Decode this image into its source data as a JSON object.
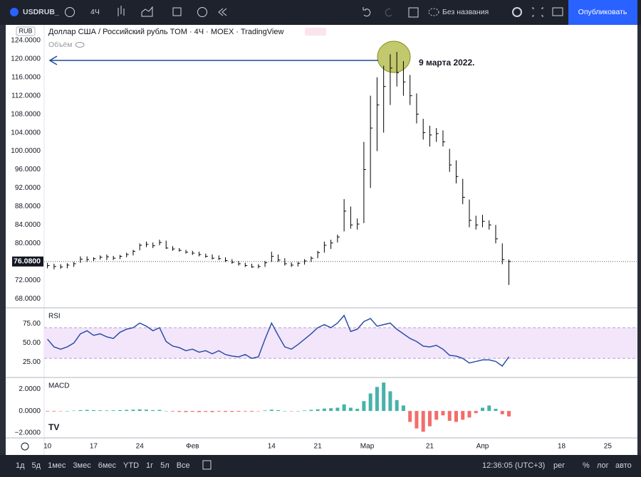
{
  "toolbar": {
    "symbol": "USDRUB_",
    "interval": "4Ч",
    "layout_name": "Без названия",
    "publish": "Опубликовать"
  },
  "legend": {
    "title": "Доллар США / Российский рубль TOM · 4Ч · MOEX · TradingView",
    "volume": "Объём",
    "currency": "RUB"
  },
  "annotation": "9 марта 2022.",
  "chart_data": [
    {
      "type": "ohlc",
      "color": "#000000",
      "x": [
        0,
        1,
        2,
        3,
        4,
        5,
        6,
        7,
        8,
        9,
        10,
        11,
        12,
        13,
        14,
        15,
        16,
        17,
        18,
        19,
        20,
        21,
        22,
        23,
        24,
        25,
        26,
        27,
        28,
        29,
        30,
        31,
        32,
        33,
        34,
        35,
        36,
        37,
        38,
        39,
        40,
        41,
        42,
        43,
        44,
        45,
        46,
        47,
        48,
        49,
        50,
        51,
        52,
        53,
        54,
        55,
        56,
        57,
        58,
        59,
        60,
        61,
        62,
        63,
        64,
        65,
        66,
        67,
        68,
        69,
        70
      ],
      "high": [
        75.8,
        75.6,
        75.5,
        75.7,
        76.0,
        77.2,
        77.2,
        77.0,
        77.4,
        77.6,
        77.3,
        77.5,
        78.0,
        78.6,
        80.0,
        80.4,
        80.2,
        80.8,
        80.6,
        79.4,
        79.0,
        78.6,
        78.4,
        78.2,
        77.8,
        77.6,
        77.4,
        77.0,
        76.6,
        76.2,
        75.8,
        75.6,
        75.5,
        76.2,
        78.2,
        77.6,
        76.8,
        75.9,
        76.0,
        76.6,
        77.2,
        78.4,
        80.4,
        80.8,
        81.9,
        89.6,
        88.0,
        85.4,
        102.0,
        112.0,
        116.0,
        118.5,
        121.0,
        121.5,
        119.5,
        116.5,
        112.5,
        107.0,
        105.5,
        105.0,
        104.5,
        100.5,
        98.0,
        94.0,
        89.5,
        86.0,
        86.2,
        85.0,
        84.0,
        80.0,
        76.5
      ],
      "low": [
        74.6,
        74.4,
        74.5,
        74.6,
        74.9,
        75.8,
        76.0,
        76.2,
        76.5,
        76.4,
        76.4,
        76.6,
        77.0,
        77.4,
        78.5,
        79.2,
        79.0,
        79.6,
        78.8,
        78.4,
        78.2,
        77.8,
        77.5,
        77.2,
        76.9,
        76.5,
        76.4,
        76.0,
        75.6,
        75.2,
        74.9,
        74.7,
        74.6,
        74.9,
        76.0,
        76.0,
        75.2,
        74.9,
        75.0,
        75.4,
        76.0,
        76.8,
        78.0,
        78.8,
        80.2,
        82.6,
        83.2,
        83.0,
        84.4,
        92.0,
        100.0,
        104.0,
        110.0,
        114.0,
        112.0,
        110.0,
        106.0,
        102.5,
        101.0,
        102.0,
        101.0,
        95.5,
        93.0,
        88.5,
        83.5,
        83.0,
        83.5,
        83.0,
        80.0,
        75.5,
        71.0
      ],
      "close": [
        75.2,
        75.0,
        74.9,
        75.3,
        75.6,
        76.6,
        76.5,
        76.7,
        77.0,
        77.1,
        76.8,
        77.2,
        77.6,
        78.3,
        79.6,
        79.8,
        79.5,
        80.2,
        79.0,
        78.8,
        78.5,
        78.1,
        77.9,
        77.6,
        77.2,
        76.8,
        76.7,
        76.3,
        75.9,
        75.6,
        75.2,
        74.9,
        75.0,
        75.8,
        77.2,
        76.4,
        75.6,
        75.3,
        75.7,
        76.2,
        76.8,
        78.0,
        79.6,
        80.1,
        81.4,
        87.0,
        84.0,
        84.2,
        96.0,
        105.0,
        110.0,
        114.0,
        118.0,
        117.0,
        115.0,
        112.0,
        108.0,
        104.0,
        103.5,
        103.8,
        102.0,
        97.0,
        94.5,
        90.0,
        85.0,
        84.0,
        84.8,
        84.0,
        81.0,
        76.5,
        76.08
      ],
      "current_price": {
        "value": 76.08,
        "label": "76.0800"
      },
      "xlim": [
        -0.5,
        89.5
      ],
      "ylim": [
        66.2,
        127.2
      ],
      "xticks": [
        {
          "value": 0,
          "label": "10"
        },
        {
          "value": 7,
          "label": "17"
        },
        {
          "value": 14,
          "label": "24"
        },
        {
          "value": 22,
          "label": "Фев"
        },
        {
          "value": 34,
          "label": "14"
        },
        {
          "value": 41,
          "label": "21"
        },
        {
          "value": 48.5,
          "label": "Мар"
        },
        {
          "value": 58,
          "label": "21"
        },
        {
          "value": 66,
          "label": "Апр"
        },
        {
          "value": 78,
          "label": "18"
        },
        {
          "value": 85,
          "label": "25"
        }
      ],
      "yticks": [
        {
          "value": 68,
          "label": "68.0000"
        },
        {
          "value": 72,
          "label": "72.0000"
        },
        {
          "value": 76,
          "label": "76.0000"
        },
        {
          "value": 80,
          "label": "80.0000"
        },
        {
          "value": 84,
          "label": "84.0000"
        },
        {
          "value": 88,
          "label": "88.0000"
        },
        {
          "value": 92,
          "label": "92.0000"
        },
        {
          "value": 96,
          "label": "96.0000"
        },
        {
          "value": 100,
          "label": "100.0000"
        },
        {
          "value": 104,
          "label": "104.0000"
        },
        {
          "value": 108,
          "label": "108.0000"
        },
        {
          "value": 112,
          "label": "112.0000"
        },
        {
          "value": 116,
          "label": "116.0000"
        },
        {
          "value": 120,
          "label": "120.0000"
        },
        {
          "value": 124,
          "label": "124.0000"
        }
      ]
    },
    {
      "type": "line",
      "title": "RSI",
      "color": "#2a4fa8",
      "band": [
        30,
        70
      ],
      "band_color": "#f3e6fb",
      "values": [
        55,
        45,
        42,
        45,
        50,
        62,
        66,
        60,
        62,
        58,
        56,
        64,
        68,
        70,
        76,
        72,
        66,
        70,
        52,
        46,
        44,
        40,
        42,
        38,
        40,
        36,
        40,
        35,
        33,
        32,
        35,
        30,
        32,
        55,
        76,
        60,
        45,
        42,
        48,
        55,
        62,
        70,
        74,
        70,
        76,
        86,
        65,
        68,
        78,
        82,
        72,
        74,
        76,
        68,
        62,
        56,
        52,
        46,
        45,
        47,
        42,
        34,
        33,
        30,
        24,
        26,
        28,
        28,
        26,
        20,
        32
      ],
      "ylim": [
        6,
        95
      ],
      "yticks": [
        {
          "value": 25,
          "label": "25.00"
        },
        {
          "value": 50,
          "label": "50.00"
        },
        {
          "value": 75,
          "label": "75.00"
        }
      ]
    },
    {
      "type": "bar",
      "title": "MACD",
      "up_color": "#26a69a",
      "down_color": "#ef5350",
      "values": [
        -0.05,
        -0.05,
        -0.03,
        0.0,
        0.03,
        0.08,
        0.1,
        0.08,
        0.06,
        0.05,
        0.06,
        0.08,
        0.1,
        0.12,
        0.15,
        0.12,
        0.08,
        0.1,
        0.0,
        -0.05,
        -0.08,
        -0.1,
        -0.08,
        -0.1,
        -0.08,
        -0.1,
        -0.06,
        -0.08,
        -0.08,
        -0.07,
        -0.05,
        -0.06,
        -0.03,
        0.05,
        0.12,
        0.08,
        0.0,
        -0.03,
        0.0,
        0.05,
        0.1,
        0.15,
        0.22,
        0.25,
        0.3,
        0.6,
        0.3,
        0.2,
        0.9,
        1.6,
        2.2,
        2.6,
        1.8,
        1.0,
        0.5,
        -1.0,
        -1.6,
        -1.9,
        -1.4,
        -0.8,
        -0.4,
        -0.9,
        -1.0,
        -0.8,
        -0.6,
        -0.2,
        0.3,
        0.5,
        0.2,
        -0.3,
        -0.5
      ],
      "ylim": [
        -2.4,
        3
      ],
      "yticks": [
        {
          "value": 2,
          "label": "2.0000"
        },
        {
          "value": 0,
          "label": "0.0000"
        },
        {
          "value": -2,
          "label": "−2.0000"
        }
      ]
    }
  ],
  "bottom_bar": {
    "timeframes": [
      "1д",
      "5д",
      "1мес",
      "3мес",
      "6мес",
      "YTD",
      "1г",
      "5л",
      "Все"
    ],
    "clock": "12:36:05 (UTC+3)",
    "session": "рег",
    "percent": "%",
    "log": "лог",
    "auto": "авто"
  }
}
